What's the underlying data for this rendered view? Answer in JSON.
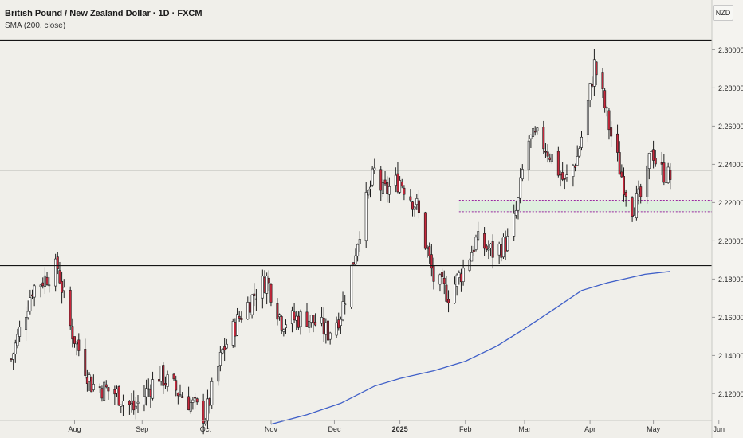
{
  "header": {
    "title": "British Pound / New Zealand Dollar · 1D · FXCM",
    "indicator": "SMA (200, close)"
  },
  "currency_label": "NZD",
  "chart_data": {
    "type": "candlestick",
    "colors": {
      "up": "#ffffff",
      "down": "#c8283c",
      "wick": "#1e1e1e",
      "sma": "#3f5fc8",
      "zone_fill": "#dceedd",
      "zone_border": "#9a2aa0"
    },
    "ylim": [
      2.106,
      2.326
    ],
    "y_ticks": [
      "2.12000",
      "2.14000",
      "2.16000",
      "2.18000",
      "2.20000",
      "2.22000",
      "2.24000",
      "2.26000",
      "2.28000",
      "2.30000"
    ],
    "x_ticks": [
      "Aug",
      "Sep",
      "Oct",
      "Nov",
      "Dec",
      "2025",
      "Feb",
      "Mar",
      "Apr",
      "May",
      "Jun"
    ],
    "x_tick_days": [
      30,
      62,
      92,
      123,
      153,
      184,
      215,
      243,
      274,
      304,
      335
    ],
    "horizontal_lines": [
      {
        "label": "2.30500",
        "value": 2.305
      },
      {
        "label": "2.23700",
        "value": 2.237
      },
      {
        "label": "2.18700",
        "value": 2.187
      }
    ],
    "zone": {
      "top_label": "2.22120",
      "top": 2.2212,
      "bottom_label": "2.21520",
      "bottom": 2.2152,
      "start_day": 212
    },
    "last_price": {
      "label": "2.23653",
      "value": 2.23653
    },
    "price_path": [
      [
        0,
        2.138
      ],
      [
        10,
        2.175
      ],
      [
        22,
        2.186
      ],
      [
        28,
        2.155
      ],
      [
        38,
        2.125
      ],
      [
        50,
        2.12
      ],
      [
        58,
        2.112
      ],
      [
        70,
        2.13
      ],
      [
        82,
        2.118
      ],
      [
        92,
        2.108
      ],
      [
        100,
        2.142
      ],
      [
        108,
        2.16
      ],
      [
        115,
        2.172
      ],
      [
        121,
        2.18
      ],
      [
        128,
        2.158
      ],
      [
        140,
        2.16
      ],
      [
        150,
        2.152
      ],
      [
        156,
        2.162
      ],
      [
        162,
        2.19
      ],
      [
        166,
        2.212
      ],
      [
        172,
        2.236
      ],
      [
        176,
        2.225
      ],
      [
        184,
        2.232
      ],
      [
        192,
        2.218
      ],
      [
        200,
        2.18
      ],
      [
        207,
        2.172
      ],
      [
        214,
        2.185
      ],
      [
        220,
        2.2
      ],
      [
        228,
        2.194
      ],
      [
        236,
        2.2
      ],
      [
        240,
        2.22
      ],
      [
        244,
        2.252
      ],
      [
        250,
        2.254
      ],
      [
        256,
        2.244
      ],
      [
        262,
        2.23
      ],
      [
        268,
        2.244
      ],
      [
        272,
        2.265
      ],
      [
        276,
        2.292
      ],
      [
        280,
        2.275
      ],
      [
        285,
        2.25
      ],
      [
        290,
        2.23
      ],
      [
        294,
        2.218
      ],
      [
        300,
        2.225
      ],
      [
        303,
        2.25
      ],
      [
        306,
        2.238
      ],
      [
        312,
        2.233
      ],
      [
        314,
        2.2365
      ]
    ],
    "sma_path": [
      [
        123,
        2.104
      ],
      [
        140,
        2.109
      ],
      [
        156,
        2.115
      ],
      [
        172,
        2.124
      ],
      [
        184,
        2.128
      ],
      [
        200,
        2.132
      ],
      [
        215,
        2.137
      ],
      [
        230,
        2.145
      ],
      [
        243,
        2.154
      ],
      [
        258,
        2.165
      ],
      [
        270,
        2.174
      ],
      [
        282,
        2.178
      ],
      [
        300,
        2.1825
      ],
      [
        312,
        2.184
      ]
    ]
  }
}
